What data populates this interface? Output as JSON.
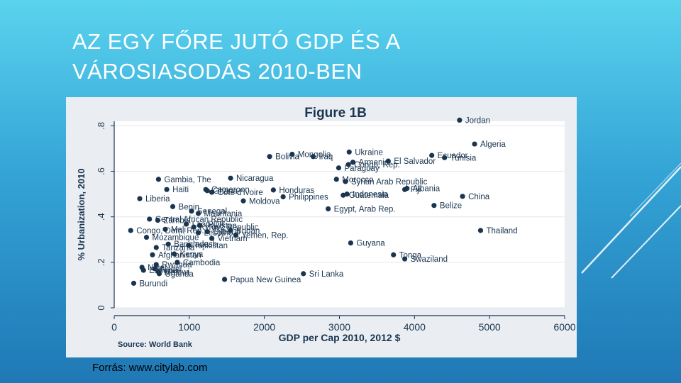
{
  "slide": {
    "title_line1": "AZ EGY FŐRE JUTÓ GDP  ÉS A",
    "title_line2": "VÁROSIASODÁS 2010-BEN",
    "caption": "Forrás: www.citylab.com"
  },
  "colors": {
    "background_top": "#5ad3ee",
    "background_bottom": "#1f78b5",
    "plot_background": "#ffffff",
    "figure_background": "#eaeef2",
    "marker": "#1a3550",
    "text": "#1a3550"
  },
  "chart_data": {
    "type": "scatter",
    "title": "Figure 1B",
    "xlabel": "GDP per Cap 2010, 2012 $",
    "ylabel": "% Urbanization, 2010",
    "source": "Source: World Bank",
    "xlim": [
      0,
      6000
    ],
    "ylim": [
      0,
      0.82
    ],
    "xticks": [
      0,
      1000,
      2000,
      3000,
      4000,
      5000,
      6000
    ],
    "yticks": [
      0,
      0.2,
      0.4,
      0.6,
      0.8
    ],
    "ytick_labels": [
      "0",
      ".2",
      ".4",
      ".6",
      ".8"
    ],
    "grid": true,
    "points": [
      {
        "label": "Jordan",
        "x": 4600,
        "y": 0.825
      },
      {
        "label": "Algeria",
        "x": 4800,
        "y": 0.72
      },
      {
        "label": "Tunisia",
        "x": 4400,
        "y": 0.66
      },
      {
        "label": "Ecuador",
        "x": 4230,
        "y": 0.67
      },
      {
        "label": "Ukraine",
        "x": 3130,
        "y": 0.685
      },
      {
        "label": "Mongolia",
        "x": 2370,
        "y": 0.675
      },
      {
        "label": "Bolivia",
        "x": 2070,
        "y": 0.665
      },
      {
        "label": "Iraq",
        "x": 2650,
        "y": 0.665
      },
      {
        "label": "Armenia",
        "x": 3180,
        "y": 0.64
      },
      {
        "label": "El Salvador",
        "x": 3650,
        "y": 0.645
      },
      {
        "label": "Congo, Rep.",
        "x": 3120,
        "y": 0.63
      },
      {
        "label": "Paraguay",
        "x": 2990,
        "y": 0.615
      },
      {
        "label": "Nicaragua",
        "x": 1550,
        "y": 0.57
      },
      {
        "label": "Gambia, The",
        "x": 590,
        "y": 0.565
      },
      {
        "label": "Morocco",
        "x": 2960,
        "y": 0.565
      },
      {
        "label": "Syrian Arab Republic",
        "x": 3080,
        "y": 0.555
      },
      {
        "label": "Haiti",
        "x": 700,
        "y": 0.52
      },
      {
        "label": "Ghana",
        "x": 1240,
        "y": 0.515
      },
      {
        "label": "Cote d'Ivoire",
        "x": 1300,
        "y": 0.508
      },
      {
        "label": "Cameroon",
        "x": 1220,
        "y": 0.52
      },
      {
        "label": "Honduras",
        "x": 2120,
        "y": 0.518
      },
      {
        "label": "Fiji",
        "x": 3870,
        "y": 0.52
      },
      {
        "label": "Albania",
        "x": 3900,
        "y": 0.525
      },
      {
        "label": "Indonesia",
        "x": 3100,
        "y": 0.5
      },
      {
        "label": "Guatemala",
        "x": 3050,
        "y": 0.495
      },
      {
        "label": "Philippines",
        "x": 2250,
        "y": 0.488
      },
      {
        "label": "China",
        "x": 4640,
        "y": 0.49
      },
      {
        "label": "Liberia",
        "x": 340,
        "y": 0.48
      },
      {
        "label": "Moldova",
        "x": 1720,
        "y": 0.47
      },
      {
        "label": "Belize",
        "x": 4260,
        "y": 0.45
      },
      {
        "label": "Benin",
        "x": 780,
        "y": 0.445
      },
      {
        "label": "Egypt, Arab Rep.",
        "x": 2850,
        "y": 0.435
      },
      {
        "label": "Mauritania",
        "x": 1120,
        "y": 0.415
      },
      {
        "label": "Senegal",
        "x": 1030,
        "y": 0.425
      },
      {
        "label": "Central African Republic",
        "x": 470,
        "y": 0.39
      },
      {
        "label": "Zambia",
        "x": 580,
        "y": 0.385
      },
      {
        "label": "Lao PDR",
        "x": 960,
        "y": 0.368
      },
      {
        "label": "Kyrgyz Republic",
        "x": 1060,
        "y": 0.355
      },
      {
        "label": "Pakistan",
        "x": 1140,
        "y": 0.362
      },
      {
        "label": "Congo, Dem. Rep.",
        "x": 220,
        "y": 0.34
      },
      {
        "label": "Mali",
        "x": 680,
        "y": 0.345
      },
      {
        "label": "Sudan",
        "x": 1550,
        "y": 0.34
      },
      {
        "label": "Lesotho",
        "x": 1120,
        "y": 0.33
      },
      {
        "label": "Djibouti",
        "x": 1240,
        "y": 0.335
      },
      {
        "label": "Yemen, Rep.",
        "x": 1620,
        "y": 0.32
      },
      {
        "label": "Mozambique",
        "x": 430,
        "y": 0.31
      },
      {
        "label": "Vietnam",
        "x": 1300,
        "y": 0.305
      },
      {
        "label": "Thailand",
        "x": 4880,
        "y": 0.34
      },
      {
        "label": "Bangladesh",
        "x": 720,
        "y": 0.28
      },
      {
        "label": "Tajikistan",
        "x": 990,
        "y": 0.275
      },
      {
        "label": "Tanzania",
        "x": 560,
        "y": 0.265
      },
      {
        "label": "Guyana",
        "x": 3150,
        "y": 0.285
      },
      {
        "label": "Afghanistan",
        "x": 510,
        "y": 0.233
      },
      {
        "label": "Kenya",
        "x": 800,
        "y": 0.237
      },
      {
        "label": "Tonga",
        "x": 3720,
        "y": 0.233
      },
      {
        "label": "Swaziland",
        "x": 3870,
        "y": 0.215
      },
      {
        "label": "Cambodia",
        "x": 840,
        "y": 0.2
      },
      {
        "label": "Rwanda",
        "x": 560,
        "y": 0.19
      },
      {
        "label": "Niger",
        "x": 370,
        "y": 0.178
      },
      {
        "label": "Nepal",
        "x": 540,
        "y": 0.172
      },
      {
        "label": "Ethiopia",
        "x": 390,
        "y": 0.165
      },
      {
        "label": "Malawi",
        "x": 590,
        "y": 0.158
      },
      {
        "label": "Uganda",
        "x": 600,
        "y": 0.15
      },
      {
        "label": "Sri Lanka",
        "x": 2520,
        "y": 0.15
      },
      {
        "label": "Papua New Guinea",
        "x": 1470,
        "y": 0.125
      },
      {
        "label": "Burundi",
        "x": 260,
        "y": 0.108
      }
    ]
  }
}
